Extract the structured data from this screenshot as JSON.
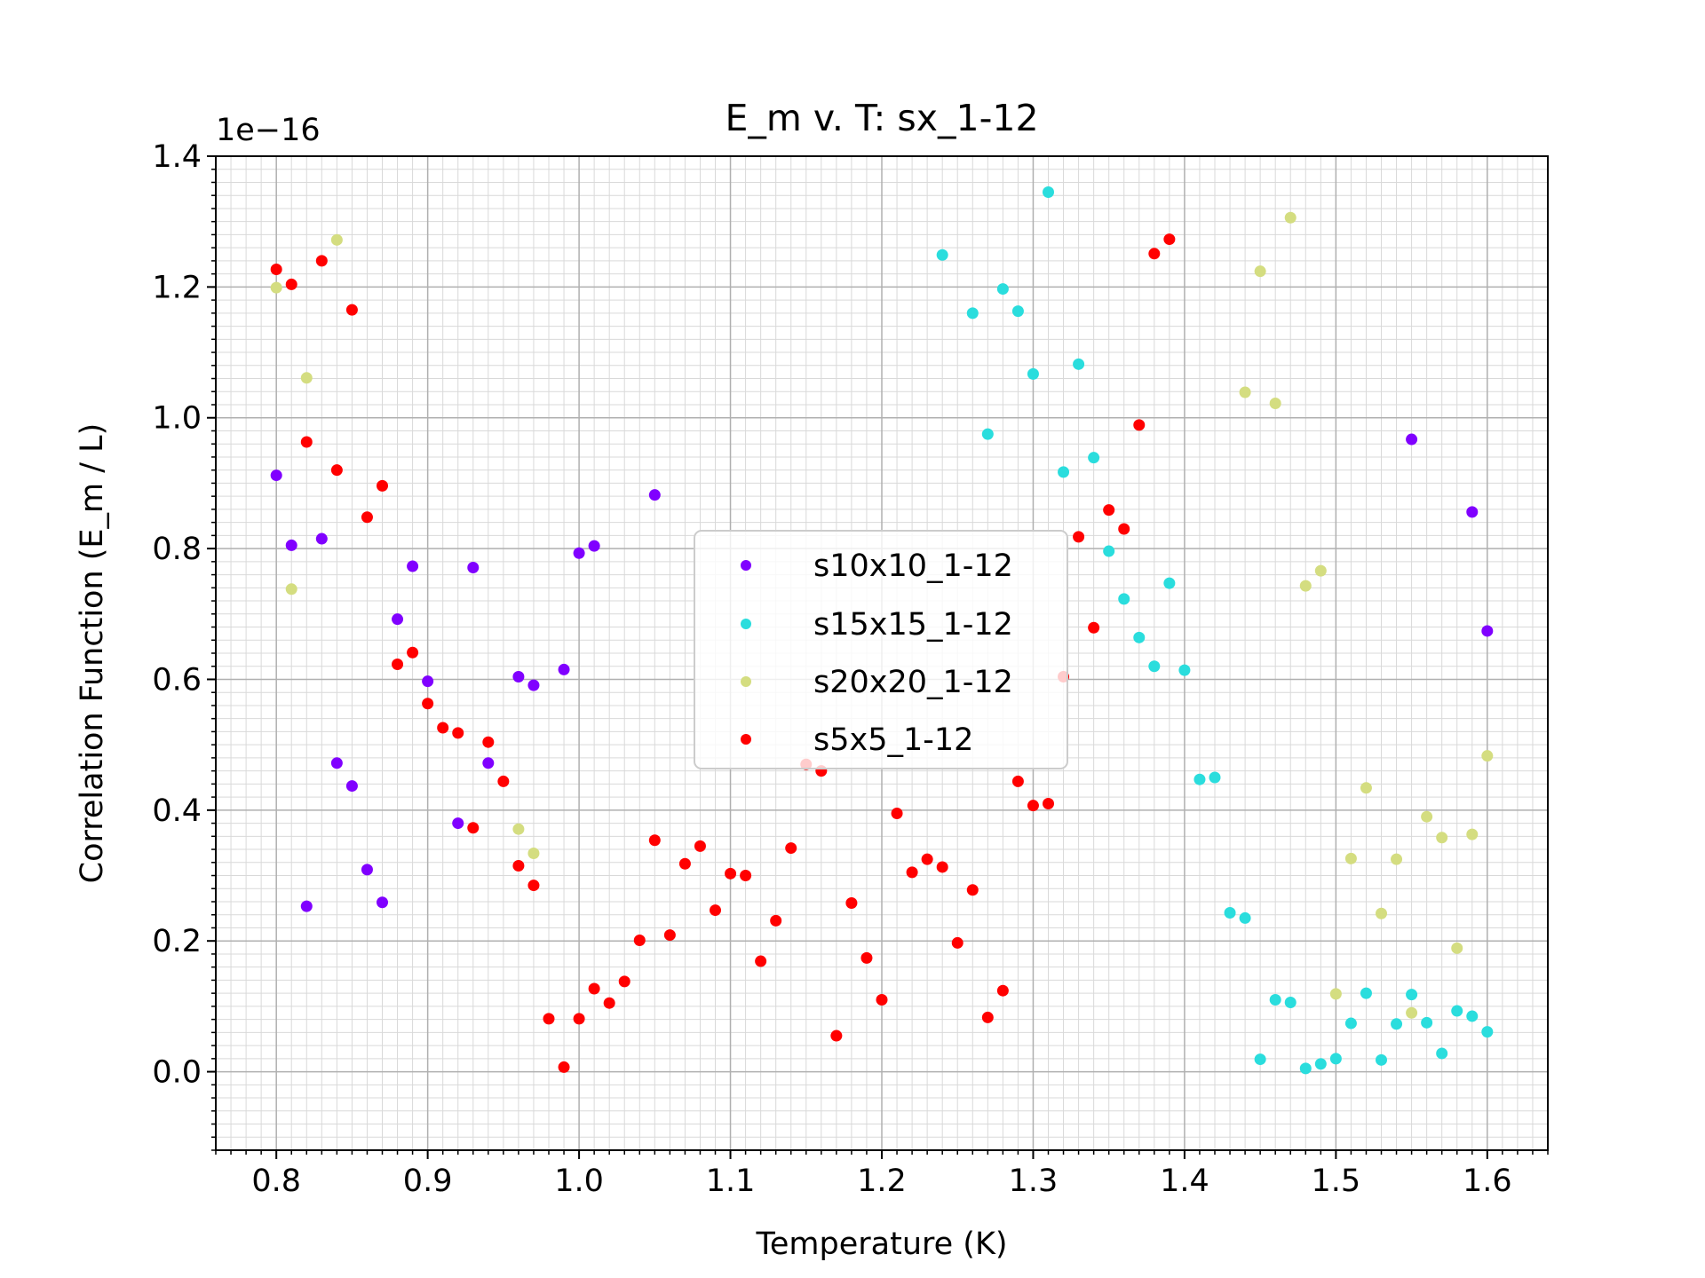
{
  "chart_data": {
    "type": "scatter",
    "title": "E_m v. T: sx_1-12",
    "xlabel": "Temperature (K)",
    "ylabel": "Correlation Function (E_m / L)",
    "offset_label": "1e−16",
    "xlim": [
      0.76,
      1.64
    ],
    "ylim": [
      -0.12,
      1.4
    ],
    "y_scale": 1e-16,
    "x_ticks": [
      0.8,
      0.9,
      1.0,
      1.1,
      1.2,
      1.3,
      1.4,
      1.5,
      1.6
    ],
    "x_tick_labels": [
      "0.8",
      "0.9",
      "1.0",
      "1.1",
      "1.2",
      "1.3",
      "1.4",
      "1.5",
      "1.6"
    ],
    "y_ticks": [
      0.0,
      0.2,
      0.4,
      0.6,
      0.8,
      1.0,
      1.2,
      1.4
    ],
    "y_tick_labels": [
      "0.0",
      "0.2",
      "0.4",
      "0.6",
      "0.8",
      "1.0",
      "1.2",
      "1.4"
    ],
    "grid": true,
    "legend_position": "center",
    "series": [
      {
        "name": "s10x10_1-12",
        "color": "#8000ff",
        "points": [
          [
            0.8,
            0.912
          ],
          [
            0.81,
            0.805
          ],
          [
            0.82,
            0.253
          ],
          [
            0.83,
            0.815
          ],
          [
            0.84,
            0.472
          ],
          [
            0.85,
            0.437
          ],
          [
            0.86,
            0.309
          ],
          [
            0.87,
            0.259
          ],
          [
            0.88,
            0.692
          ],
          [
            0.89,
            0.773
          ],
          [
            0.9,
            0.597
          ],
          [
            0.92,
            0.38
          ],
          [
            0.93,
            0.771
          ],
          [
            0.94,
            0.472
          ],
          [
            0.96,
            0.604
          ],
          [
            0.97,
            0.591
          ],
          [
            0.99,
            0.615
          ],
          [
            1.0,
            0.793
          ],
          [
            1.01,
            0.804
          ],
          [
            1.05,
            0.882
          ],
          [
            1.55,
            0.967
          ],
          [
            1.59,
            0.856
          ],
          [
            1.6,
            0.674
          ]
        ]
      },
      {
        "name": "s15x15_1-12",
        "color": "#2adddd",
        "points": [
          [
            1.24,
            1.249
          ],
          [
            1.26,
            1.16
          ],
          [
            1.27,
            0.975
          ],
          [
            1.28,
            1.197
          ],
          [
            1.29,
            1.163
          ],
          [
            1.3,
            1.067
          ],
          [
            1.31,
            1.345
          ],
          [
            1.32,
            0.917
          ],
          [
            1.33,
            1.082
          ],
          [
            1.34,
            0.939
          ],
          [
            1.35,
            0.796
          ],
          [
            1.36,
            0.723
          ],
          [
            1.37,
            0.664
          ],
          [
            1.38,
            0.62
          ],
          [
            1.39,
            0.747
          ],
          [
            1.4,
            0.614
          ],
          [
            1.41,
            0.447
          ],
          [
            1.42,
            0.45
          ],
          [
            1.43,
            0.243
          ],
          [
            1.44,
            0.235
          ],
          [
            1.45,
            0.019
          ],
          [
            1.46,
            0.11
          ],
          [
            1.47,
            0.106
          ],
          [
            1.48,
            0.005
          ],
          [
            1.49,
            0.012
          ],
          [
            1.5,
            0.02
          ],
          [
            1.51,
            0.074
          ],
          [
            1.52,
            0.12
          ],
          [
            1.53,
            0.018
          ],
          [
            1.54,
            0.073
          ],
          [
            1.55,
            0.118
          ],
          [
            1.56,
            0.075
          ],
          [
            1.57,
            0.028
          ],
          [
            1.58,
            0.093
          ],
          [
            1.59,
            0.085
          ],
          [
            1.6,
            0.061
          ]
        ]
      },
      {
        "name": "s20x20_1-12",
        "color": "#d4dd80",
        "points": [
          [
            0.8,
            1.199
          ],
          [
            0.81,
            0.738
          ],
          [
            0.82,
            1.061
          ],
          [
            0.84,
            1.272
          ],
          [
            0.96,
            0.371
          ],
          [
            0.97,
            0.334
          ],
          [
            1.44,
            1.039
          ],
          [
            1.45,
            1.224
          ],
          [
            1.46,
            1.022
          ],
          [
            1.47,
            1.306
          ],
          [
            1.48,
            0.743
          ],
          [
            1.49,
            0.766
          ],
          [
            1.5,
            0.119
          ],
          [
            1.51,
            0.326
          ],
          [
            1.52,
            0.434
          ],
          [
            1.53,
            0.242
          ],
          [
            1.54,
            0.325
          ],
          [
            1.55,
            0.09
          ],
          [
            1.56,
            0.39
          ],
          [
            1.57,
            0.358
          ],
          [
            1.58,
            0.189
          ],
          [
            1.59,
            0.363
          ],
          [
            1.6,
            0.483
          ]
        ]
      },
      {
        "name": "s5x5_1-12",
        "color": "#ff0000",
        "points": [
          [
            0.8,
            1.227
          ],
          [
            0.81,
            1.204
          ],
          [
            0.82,
            0.963
          ],
          [
            0.83,
            1.24
          ],
          [
            0.84,
            0.92
          ],
          [
            0.85,
            1.165
          ],
          [
            0.86,
            0.848
          ],
          [
            0.87,
            0.896
          ],
          [
            0.88,
            0.623
          ],
          [
            0.89,
            0.641
          ],
          [
            0.9,
            0.563
          ],
          [
            0.91,
            0.526
          ],
          [
            0.92,
            0.518
          ],
          [
            0.93,
            0.373
          ],
          [
            0.94,
            0.504
          ],
          [
            0.95,
            0.444
          ],
          [
            0.96,
            0.315
          ],
          [
            0.97,
            0.285
          ],
          [
            0.98,
            0.081
          ],
          [
            0.99,
            0.007
          ],
          [
            1.0,
            0.081
          ],
          [
            1.01,
            0.127
          ],
          [
            1.02,
            0.105
          ],
          [
            1.03,
            0.138
          ],
          [
            1.04,
            0.201
          ],
          [
            1.05,
            0.354
          ],
          [
            1.06,
            0.209
          ],
          [
            1.07,
            0.318
          ],
          [
            1.08,
            0.345
          ],
          [
            1.09,
            0.247
          ],
          [
            1.1,
            0.303
          ],
          [
            1.11,
            0.3
          ],
          [
            1.12,
            0.169
          ],
          [
            1.13,
            0.231
          ],
          [
            1.14,
            0.342
          ],
          [
            1.15,
            0.47
          ],
          [
            1.16,
            0.46
          ],
          [
            1.17,
            0.055
          ],
          [
            1.18,
            0.258
          ],
          [
            1.19,
            0.174
          ],
          [
            1.2,
            0.11
          ],
          [
            1.21,
            0.395
          ],
          [
            1.22,
            0.305
          ],
          [
            1.23,
            0.325
          ],
          [
            1.24,
            0.313
          ],
          [
            1.25,
            0.197
          ],
          [
            1.26,
            0.278
          ],
          [
            1.27,
            0.083
          ],
          [
            1.28,
            0.124
          ],
          [
            1.29,
            0.444
          ],
          [
            1.3,
            0.407
          ],
          [
            1.31,
            0.41
          ],
          [
            1.32,
            0.604
          ],
          [
            1.33,
            0.818
          ],
          [
            1.34,
            0.679
          ],
          [
            1.35,
            0.859
          ],
          [
            1.36,
            0.83
          ],
          [
            1.37,
            0.989
          ],
          [
            1.38,
            1.251
          ],
          [
            1.39,
            1.273
          ]
        ]
      }
    ]
  }
}
